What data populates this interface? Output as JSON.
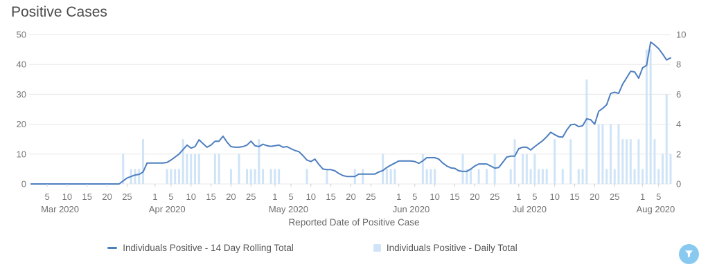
{
  "header": {
    "title": "Positive Cases"
  },
  "xaxis_title": "Reported Date of Positive Case",
  "controls": {
    "filter_button_color": "#87c9ef",
    "filter_icon": "funnel-icon"
  },
  "colors": {
    "line": "#4d7ebf",
    "bar": "#cfe4f7",
    "grid": "#e7e7e7",
    "axis_text": "#777777",
    "title_text": "#4a4a4a"
  },
  "chart_data": {
    "type": "line+bar",
    "title": "Positive Cases",
    "xlabel": "Reported Date of Positive Case",
    "start_date": "2020-03-01",
    "end_date": "2020-08-08",
    "grid": "horizontal",
    "legend_position": "bottom",
    "left_axis": {
      "label": "",
      "min": 0,
      "max": 50,
      "ticks": [
        0,
        10,
        20,
        30,
        40,
        50
      ]
    },
    "right_axis": {
      "label": "",
      "min": 0,
      "max": 10,
      "ticks": [
        0,
        2,
        4,
        6,
        8,
        10
      ]
    },
    "months": [
      {
        "label": "Mar 2020",
        "first_day_offset": 0,
        "tick_days": [
          5,
          10,
          15,
          20,
          25
        ]
      },
      {
        "label": "Apr 2020",
        "first_day_offset": 31,
        "tick_days": [
          1,
          5,
          10,
          15,
          20,
          25
        ]
      },
      {
        "label": "May 2020",
        "first_day_offset": 61,
        "tick_days": [
          1,
          5,
          10,
          15,
          20,
          25
        ]
      },
      {
        "label": "Jun 2020",
        "first_day_offset": 92,
        "tick_days": [
          1,
          5,
          10,
          15,
          20,
          25
        ]
      },
      {
        "label": "Jul 2020",
        "first_day_offset": 122,
        "tick_days": [
          1,
          5,
          10,
          15,
          20,
          25
        ]
      },
      {
        "label": "Aug 2020",
        "first_day_offset": 153,
        "tick_days": [
          1,
          5
        ]
      }
    ],
    "series": [
      {
        "name": "Individuals Positive - 14 Day Rolling Total",
        "type": "line",
        "axis": "left",
        "color": "#4d7ebf",
        "values": [
          0,
          0,
          0,
          0,
          0,
          0,
          0,
          0,
          0,
          0,
          0,
          0,
          0,
          0,
          0,
          0,
          0,
          0,
          0,
          0,
          0,
          0,
          0,
          1,
          2,
          2.5,
          3,
          3.2,
          4,
          7,
          7,
          7,
          7,
          7,
          7.2,
          8,
          9,
          10,
          11.5,
          13,
          12,
          12.5,
          14.8,
          13.5,
          12.3,
          13,
          14.3,
          14.3,
          16,
          14,
          12.5,
          12.3,
          12.3,
          12.5,
          13,
          14.3,
          12.8,
          12.5,
          13.3,
          12.8,
          12.6,
          12.8,
          13,
          12.3,
          12.5,
          11.8,
          11.2,
          10.8,
          9.5,
          8,
          7.5,
          8.3,
          6.5,
          5,
          4.8,
          4.8,
          4.4,
          3.5,
          2.8,
          2.5,
          2.5,
          2.5,
          3.3,
          3.3,
          3.3,
          3.3,
          3.3,
          4,
          4.5,
          5.5,
          6.3,
          7,
          7.7,
          7.7,
          7.7,
          7.7,
          7.5,
          6.9,
          7.7,
          8.8,
          8.8,
          8.8,
          8.3,
          7,
          6,
          5.4,
          5.2,
          4.4,
          4.2,
          4.2,
          5,
          6,
          6.7,
          6.7,
          6.7,
          6,
          5.3,
          5.5,
          7.2,
          9,
          9.3,
          9.3,
          11.8,
          12.3,
          12.3,
          11.4,
          12.5,
          13.5,
          14.5,
          15.8,
          17.3,
          16.5,
          15.8,
          15.7,
          18,
          19.8,
          20,
          19.2,
          19.5,
          21.8,
          21.5,
          20,
          24.3,
          25.3,
          26.5,
          30.3,
          30.7,
          30.3,
          33.4,
          35.5,
          37.7,
          37.5,
          35.4,
          38.9,
          39.7,
          47.5,
          46.5,
          45.3,
          43.5,
          41.5,
          42.2
        ]
      },
      {
        "name": "Individuals Positive - Daily Total",
        "type": "bar",
        "axis": "right",
        "color": "#cfe4f7",
        "points": [
          [
            "2020-03-24",
            23,
            2
          ],
          [
            "2020-03-26",
            25,
            1
          ],
          [
            "2020-03-27",
            26,
            1
          ],
          [
            "2020-03-28",
            27,
            1
          ],
          [
            "2020-03-29",
            28,
            3
          ],
          [
            "2020-04-04",
            34,
            1
          ],
          [
            "2020-04-05",
            35,
            1
          ],
          [
            "2020-04-06",
            36,
            1
          ],
          [
            "2020-04-07",
            37,
            1
          ],
          [
            "2020-04-08",
            38,
            3
          ],
          [
            "2020-04-09",
            39,
            2
          ],
          [
            "2020-04-10",
            40,
            2
          ],
          [
            "2020-04-11",
            41,
            2
          ],
          [
            "2020-04-12",
            42,
            2
          ],
          [
            "2020-04-16",
            46,
            2
          ],
          [
            "2020-04-17",
            47,
            2
          ],
          [
            "2020-04-20",
            50,
            1
          ],
          [
            "2020-04-22",
            52,
            2
          ],
          [
            "2020-04-24",
            54,
            1
          ],
          [
            "2020-04-25",
            55,
            1
          ],
          [
            "2020-04-26",
            56,
            1
          ],
          [
            "2020-04-27",
            57,
            3
          ],
          [
            "2020-04-28",
            58,
            1
          ],
          [
            "2020-04-30",
            60,
            1
          ],
          [
            "2020-05-01",
            61,
            1
          ],
          [
            "2020-05-02",
            62,
            1
          ],
          [
            "2020-05-09",
            69,
            1
          ],
          [
            "2020-05-14",
            74,
            1
          ],
          [
            "2020-05-21",
            81,
            1
          ],
          [
            "2020-05-23",
            83,
            1
          ],
          [
            "2020-05-28",
            88,
            2
          ],
          [
            "2020-05-29",
            89,
            1
          ],
          [
            "2020-05-30",
            90,
            1
          ],
          [
            "2020-05-31",
            91,
            1
          ],
          [
            "2020-06-07",
            98,
            2
          ],
          [
            "2020-06-08",
            99,
            1
          ],
          [
            "2020-06-09",
            100,
            1
          ],
          [
            "2020-06-10",
            101,
            1
          ],
          [
            "2020-06-17",
            108,
            2
          ],
          [
            "2020-06-18",
            109,
            1
          ],
          [
            "2020-06-19",
            110,
            1
          ],
          [
            "2020-06-21",
            112,
            1
          ],
          [
            "2020-06-23",
            114,
            1
          ],
          [
            "2020-06-25",
            116,
            2
          ],
          [
            "2020-06-29",
            120,
            1
          ],
          [
            "2020-06-30",
            121,
            3
          ],
          [
            "2020-07-02",
            123,
            2
          ],
          [
            "2020-07-03",
            124,
            2
          ],
          [
            "2020-07-04",
            125,
            1
          ],
          [
            "2020-07-05",
            126,
            2
          ],
          [
            "2020-07-06",
            127,
            1
          ],
          [
            "2020-07-07",
            128,
            1
          ],
          [
            "2020-07-08",
            129,
            1
          ],
          [
            "2020-07-10",
            131,
            3
          ],
          [
            "2020-07-12",
            133,
            1
          ],
          [
            "2020-07-14",
            135,
            3
          ],
          [
            "2020-07-16",
            137,
            1
          ],
          [
            "2020-07-17",
            138,
            1
          ],
          [
            "2020-07-18",
            139,
            7
          ],
          [
            "2020-07-21",
            142,
            4
          ],
          [
            "2020-07-22",
            143,
            4
          ],
          [
            "2020-07-23",
            144,
            1
          ],
          [
            "2020-07-24",
            145,
            4
          ],
          [
            "2020-07-25",
            146,
            1
          ],
          [
            "2020-07-26",
            147,
            4
          ],
          [
            "2020-07-27",
            148,
            3
          ],
          [
            "2020-07-28",
            149,
            3
          ],
          [
            "2020-07-29",
            150,
            3
          ],
          [
            "2020-07-30",
            151,
            1
          ],
          [
            "2020-07-31",
            152,
            3
          ],
          [
            "2020-08-01",
            153,
            1
          ],
          [
            "2020-08-02",
            154,
            9
          ],
          [
            "2020-08-03",
            155,
            9
          ],
          [
            "2020-08-04",
            156,
            3
          ],
          [
            "2020-08-05",
            157,
            1
          ],
          [
            "2020-08-06",
            158,
            2
          ],
          [
            "2020-08-07",
            159,
            6
          ],
          [
            "2020-08-08",
            160,
            2
          ]
        ]
      }
    ]
  }
}
